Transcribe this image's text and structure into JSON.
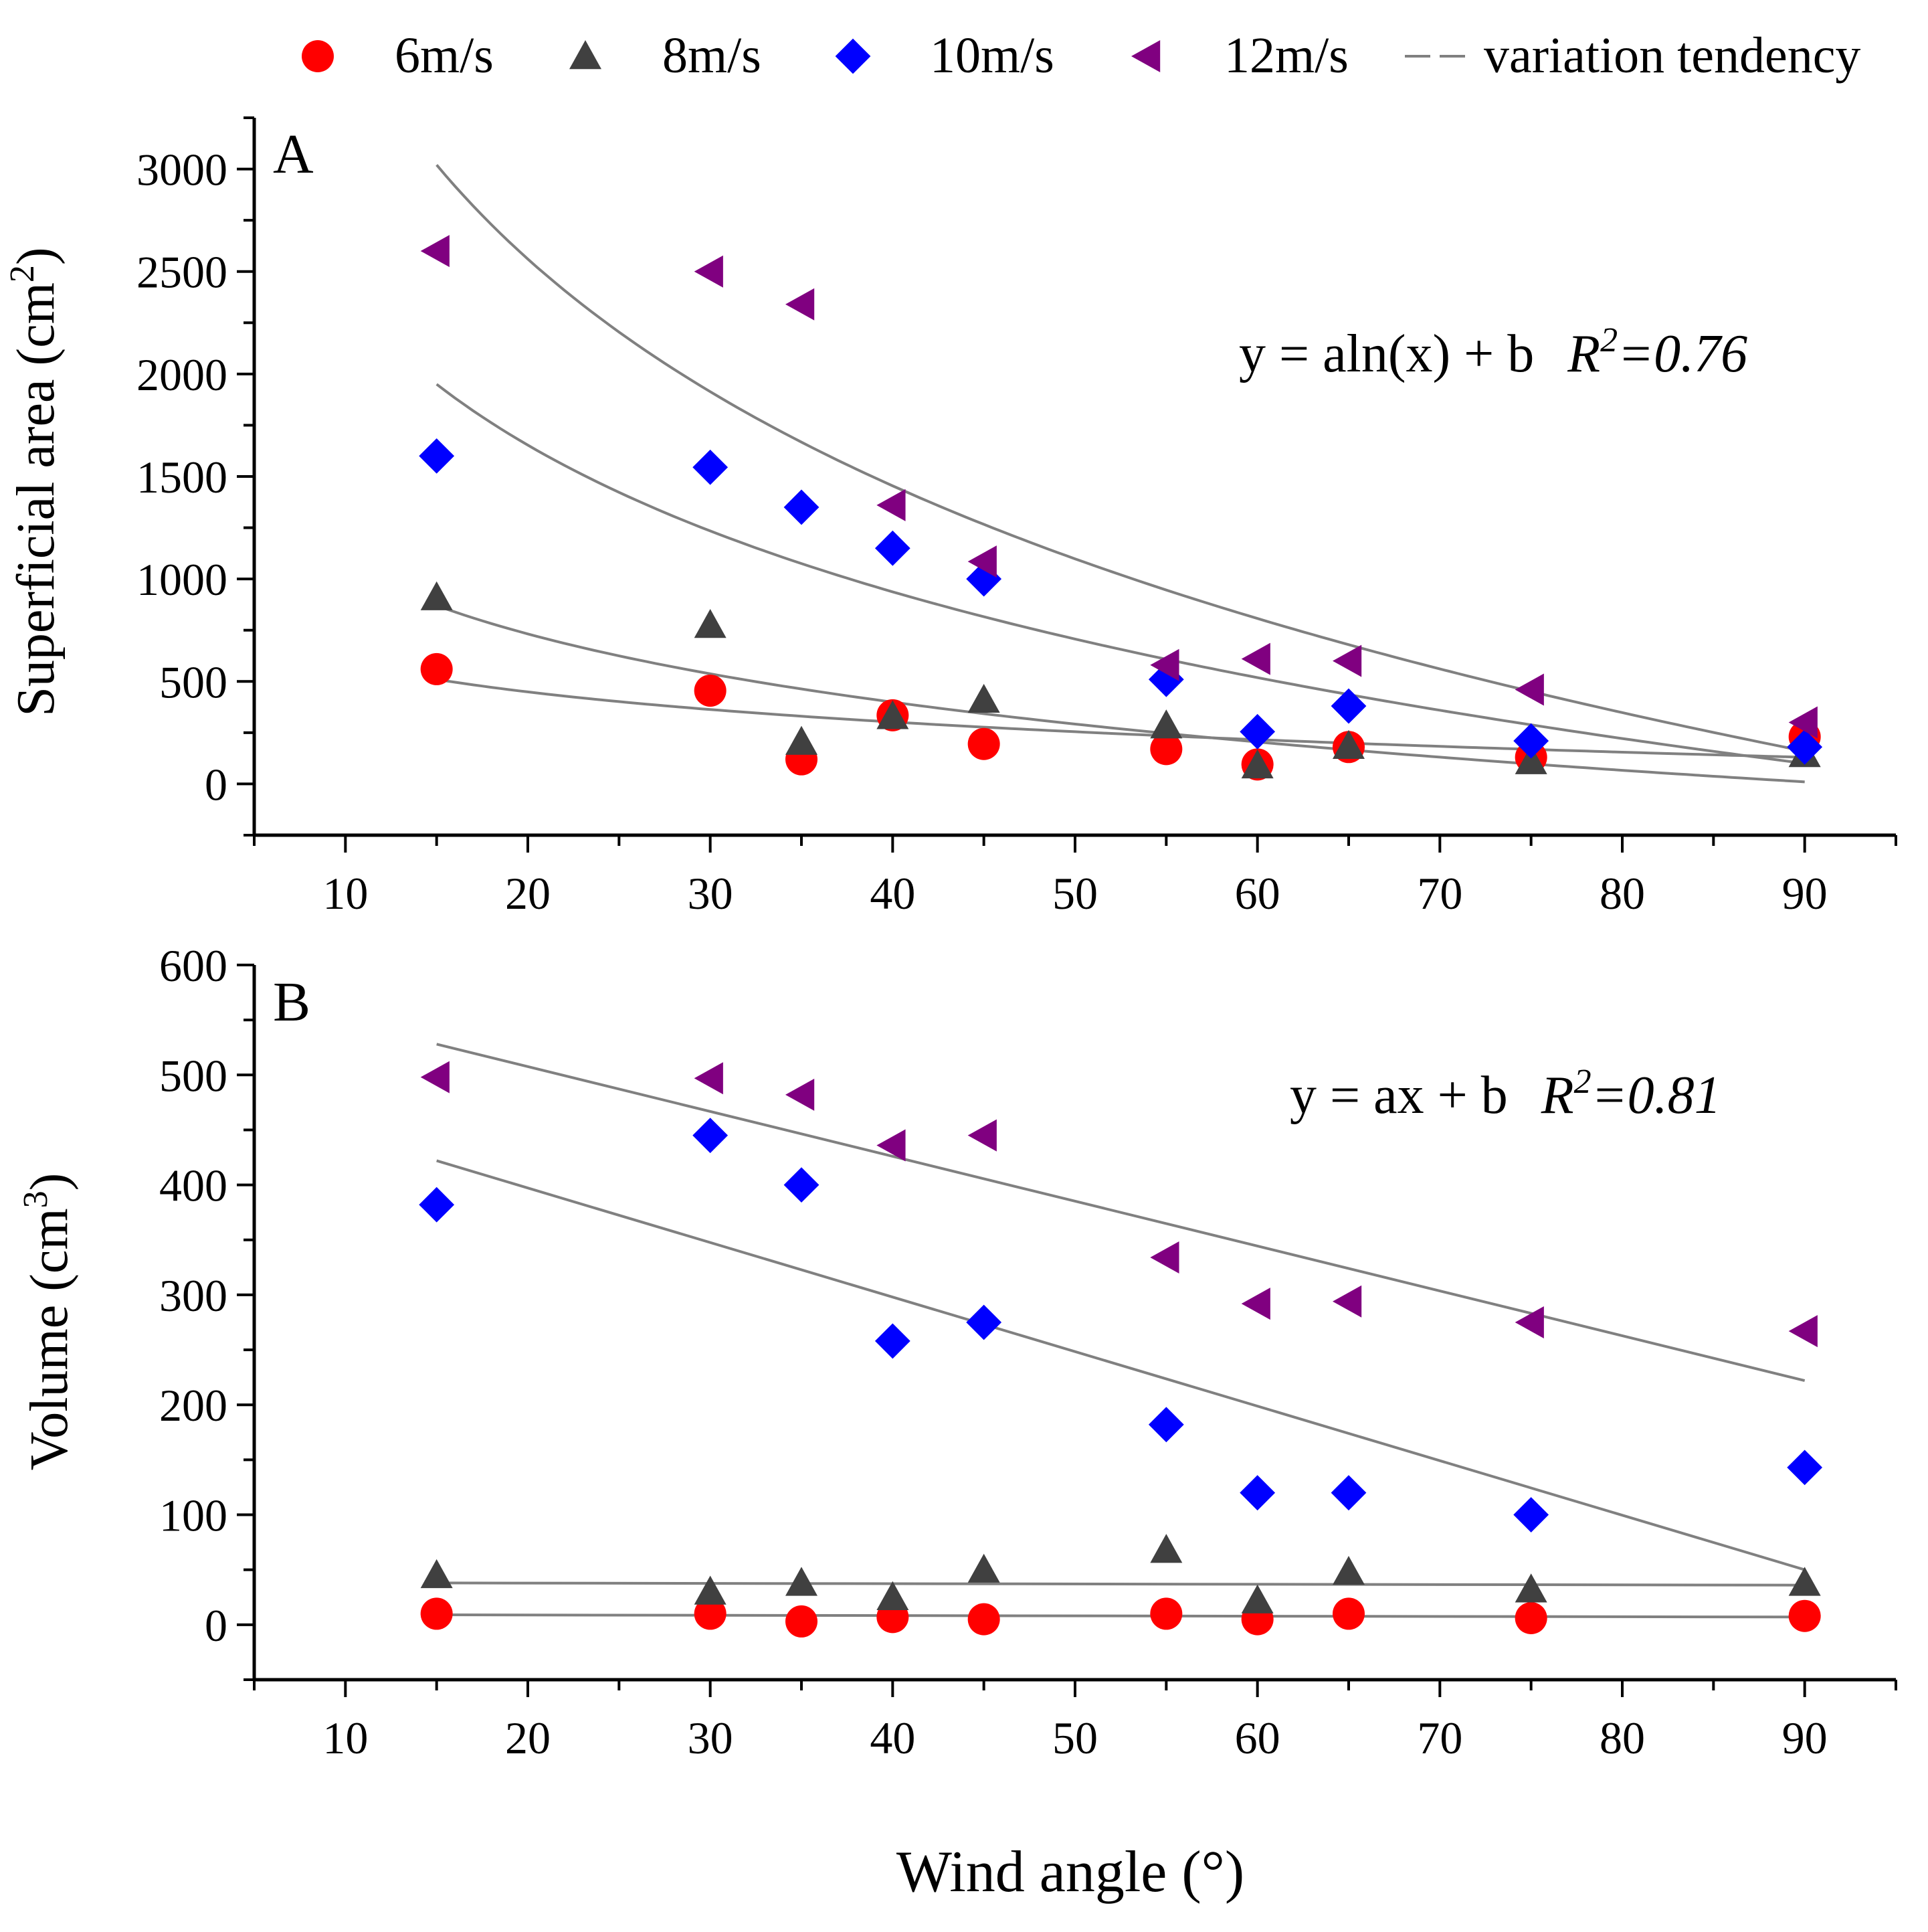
{
  "colors": {
    "s6": "#ff0000",
    "s8": "#404040",
    "s10": "#0000ff",
    "s12": "#800080",
    "trend": "#808080"
  },
  "legend": [
    {
      "key": "s6",
      "label": "6m/s",
      "marker": "circle"
    },
    {
      "key": "s8",
      "label": "8m/s",
      "marker": "triangle-up"
    },
    {
      "key": "s10",
      "label": "10m/s",
      "marker": "diamond"
    },
    {
      "key": "s12",
      "label": "12m/s",
      "marker": "triangle-left"
    },
    {
      "key": "trend",
      "label": "variation tendency",
      "marker": "line"
    }
  ],
  "xlabel": "Wind angle (°)",
  "chart_data": [
    {
      "type": "scatter",
      "panel": "A",
      "ylabel_main": "Superficial area (cm",
      "ylabel_sup": "2",
      "ylabel_end": ")",
      "equation": {
        "main": "y = aln(x) + b",
        "r": "R",
        "sup": "2",
        "val": "=0.76"
      },
      "xlim": [
        5,
        95
      ],
      "ylim": [
        -250,
        3250
      ],
      "xticks": [
        10,
        20,
        30,
        40,
        50,
        60,
        70,
        80,
        90
      ],
      "yticks": [
        0,
        500,
        1000,
        1500,
        2000,
        2500,
        3000
      ],
      "x": [
        15,
        30,
        35,
        40,
        45,
        55,
        60,
        65,
        75,
        90
      ],
      "series": [
        {
          "key": "s6",
          "name": "6m/s",
          "values": [
            560,
            455,
            120,
            335,
            195,
            170,
            95,
            180,
            130,
            230
          ]
        },
        {
          "key": "s8",
          "name": "8m/s",
          "values": [
            910,
            775,
            205,
            330,
            410,
            285,
            90,
            185,
            110,
            145
          ]
        },
        {
          "key": "s10",
          "name": "10m/s",
          "values": [
            1600,
            1545,
            1350,
            1150,
            1000,
            510,
            255,
            380,
            210,
            180
          ]
        },
        {
          "key": "s12",
          "name": "12m/s",
          "values": [
            2600,
            2500,
            2340,
            1360,
            1085,
            580,
            610,
            600,
            460,
            300
          ]
        }
      ],
      "trend_lines": [
        {
          "fit": "log",
          "from": [
            15,
            3020
          ],
          "to": [
            90,
            160
          ]
        },
        {
          "fit": "log",
          "from": [
            15,
            1950
          ],
          "to": [
            90,
            100
          ]
        },
        {
          "fit": "log",
          "from": [
            15,
            870
          ],
          "to": [
            90,
            10
          ]
        },
        {
          "fit": "log",
          "from": [
            15,
            510
          ],
          "to": [
            90,
            130
          ]
        }
      ]
    },
    {
      "type": "scatter",
      "panel": "B",
      "ylabel_main": "Volume (cm",
      "ylabel_sup": "3",
      "ylabel_end": ")",
      "equation": {
        "main": "y = ax + b",
        "r": "R",
        "sup": "2",
        "val": "=0.81"
      },
      "xlim": [
        5,
        95
      ],
      "ylim": [
        -50,
        600
      ],
      "xticks": [
        10,
        20,
        30,
        40,
        50,
        60,
        70,
        80,
        90
      ],
      "yticks": [
        0,
        100,
        200,
        300,
        400,
        500,
        600
      ],
      "x": [
        15,
        30,
        35,
        40,
        45,
        55,
        60,
        65,
        75,
        90
      ],
      "series": [
        {
          "key": "s6",
          "name": "6m/s",
          "values": [
            10,
            10,
            3,
            7,
            5,
            10,
            5,
            10,
            6,
            8
          ]
        },
        {
          "key": "s8",
          "name": "8m/s",
          "values": [
            45,
            30,
            38,
            25,
            50,
            68,
            22,
            48,
            32,
            38
          ]
        },
        {
          "key": "s10",
          "name": "10m/s",
          "values": [
            382,
            445,
            400,
            258,
            275,
            182,
            120,
            120,
            100,
            143
          ]
        },
        {
          "key": "s12",
          "name": "12m/s",
          "values": [
            498,
            497,
            482,
            436,
            445,
            334,
            292,
            294,
            275,
            267
          ]
        }
      ],
      "trend_lines": [
        {
          "fit": "linear",
          "from": [
            15,
            528
          ],
          "to": [
            90,
            222
          ]
        },
        {
          "fit": "linear",
          "from": [
            15,
            422
          ],
          "to": [
            90,
            50
          ]
        },
        {
          "fit": "linear",
          "from": [
            15,
            38
          ],
          "to": [
            90,
            36
          ]
        },
        {
          "fit": "linear",
          "from": [
            15,
            9
          ],
          "to": [
            90,
            7
          ]
        }
      ]
    }
  ]
}
